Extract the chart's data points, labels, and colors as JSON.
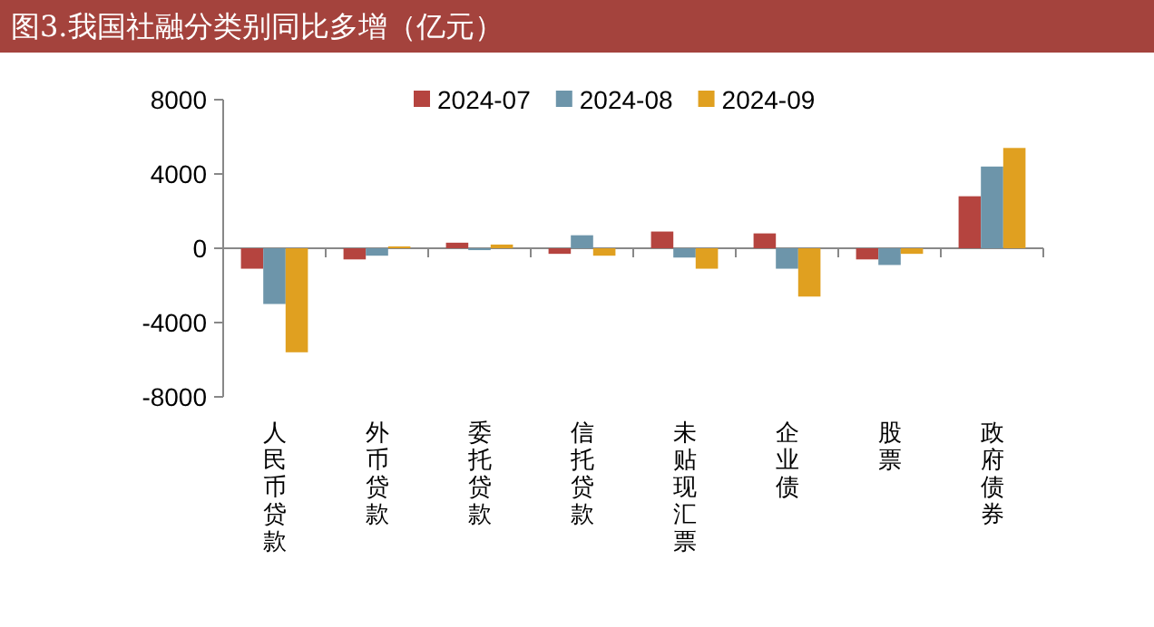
{
  "chart_data": {
    "type": "bar",
    "title": "图3.我国社融分类别同比多增（亿元）",
    "categories": [
      "人民币贷款",
      "外币贷款",
      "委托贷款",
      "信托贷款",
      "未贴现汇票",
      "企业债",
      "股票",
      "政府债券"
    ],
    "series": [
      {
        "name": "2024-07",
        "color": "#b5443f",
        "values": [
          -1100,
          -600,
          300,
          -300,
          900,
          800,
          -600,
          2800
        ]
      },
      {
        "name": "2024-08",
        "color": "#6d95aa",
        "values": [
          -3000,
          -400,
          -100,
          700,
          -500,
          -1100,
          -900,
          4400
        ]
      },
      {
        "name": "2024-09",
        "color": "#e0a020",
        "values": [
          -5600,
          100,
          200,
          -400,
          -1100,
          -2600,
          -300,
          5400
        ]
      }
    ],
    "ylim": [
      -8000,
      8000
    ],
    "yticks": [
      -8000,
      -4000,
      0,
      4000,
      8000
    ],
    "legend": "top"
  }
}
